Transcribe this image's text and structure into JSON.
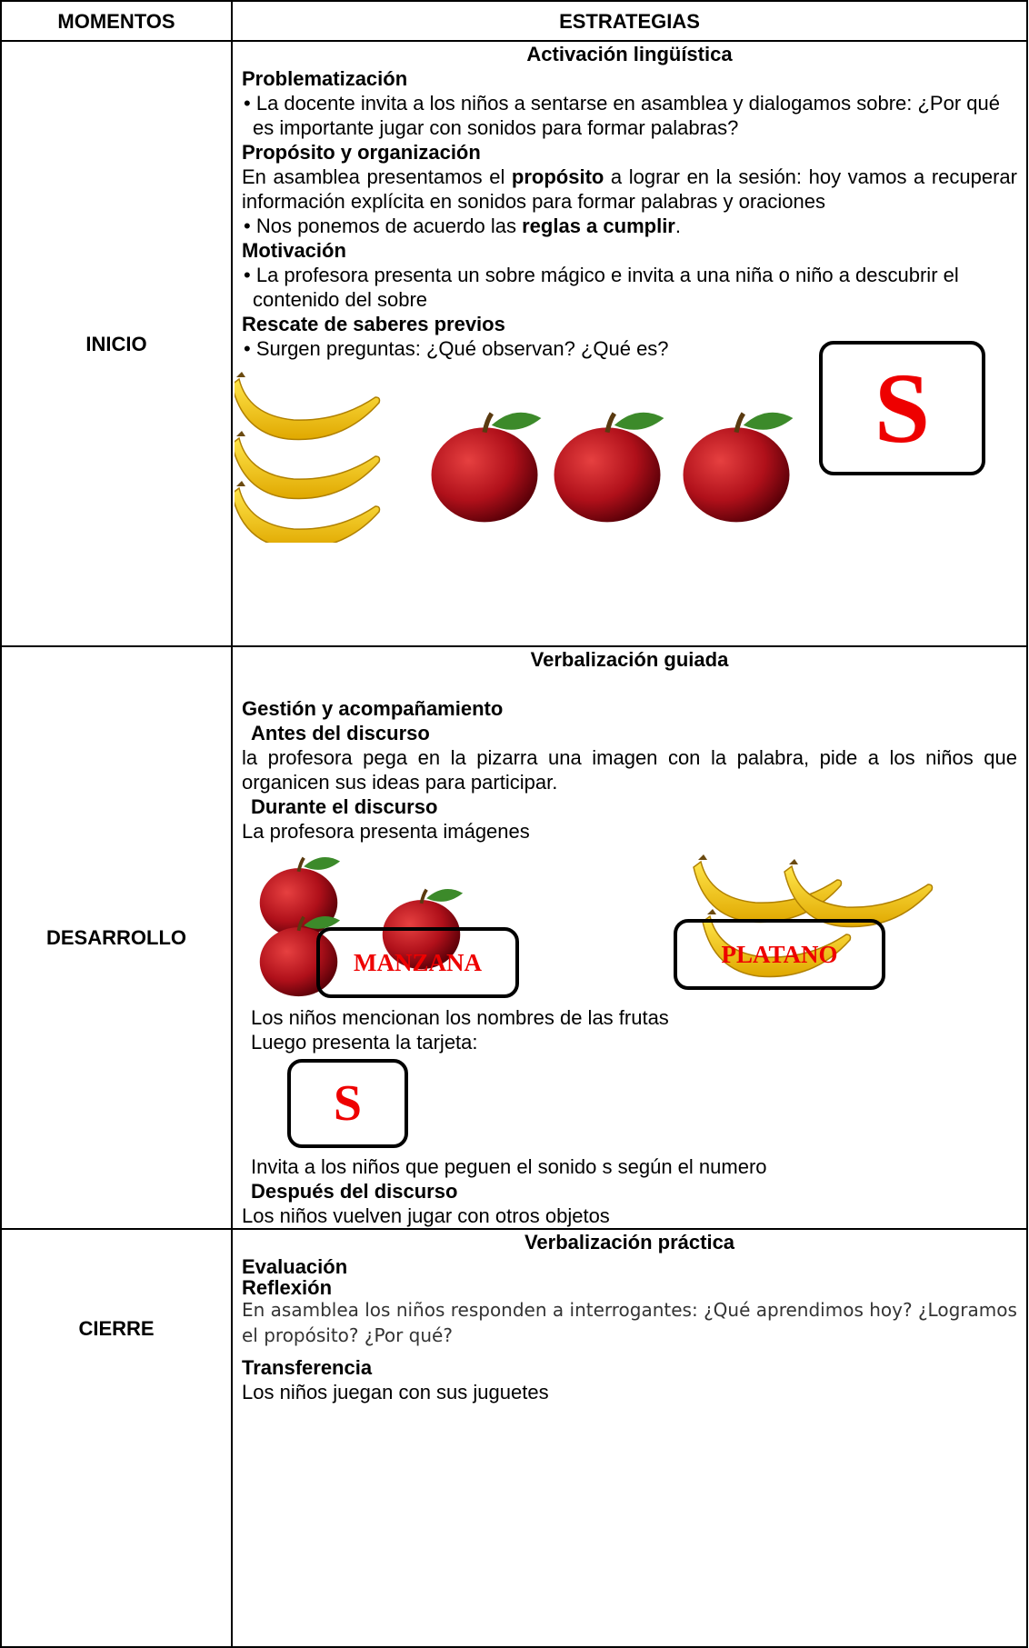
{
  "header": {
    "moments": "MOMENTOS",
    "strategies": "ESTRATEGIAS"
  },
  "inicio": {
    "moment": "INICIO",
    "heading": "Activación lingüística",
    "problem_title": "Problematización",
    "problem_text": "La docente invita a los niños a sentarse en asamblea y dialogamos sobre: ¿Por qué es importante jugar con sonidos para formar palabras?",
    "purpose_title": "Propósito y organización",
    "purpose_text": [
      "En asamblea presentamos el ",
      "propósito",
      " a lograr en la sesión: hoy vamos a recuperar información explícita en sonidos para formar palabras y oraciones"
    ],
    "rules_text": [
      "Nos ponemos de acuerdo las ",
      "reglas a cumplir",
      "."
    ],
    "motivation_title": "Motivación",
    "motivation_text": "La profesora presenta un sobre mágico e invita a una niña o niño a descubrir el contenido del sobre",
    "rescue_title": "Rescate de saberes previos",
    "rescue_text": "Surgen preguntas: ¿Qué observan? ¿Qué es?",
    "card": "S"
  },
  "desarrollo": {
    "moment": "DESARROLLO",
    "heading": "Verbalización guiada",
    "management_title": "Gestión y acompañamiento",
    "before_title": "Antes del discurso",
    "before_text": "la profesora pega en la pizarra una imagen con la palabra, pide a los niños que organicen sus ideas para participar.",
    "during_title": "Durante el discurso",
    "during_text": "La profesora presenta imágenes",
    "card_apple": "MANZANA",
    "card_banana": "PLATANO",
    "mention_text": "Los niños mencionan los nombres de las frutas",
    "card_intro": "Luego presenta la tarjeta:",
    "card": "S",
    "invite_text": "Invita a los niños que peguen el sonido s según el numero",
    "after_title": "Después del discurso",
    "after_text": "Los niños vuelven jugar con otros objetos"
  },
  "cierre": {
    "moment": "CIERRE",
    "heading": "Verbalización práctica",
    "evaluation_title": "Evaluación",
    "reflection_title": "Reflexión",
    "reflection_text": "En asamblea los niños responden a interrogantes: ¿Qué aprendimos hoy? ¿Logramos el propósito? ¿Por qué?",
    "transfer_title": "Transferencia",
    "transfer_text": "Los niños juegan con sus juguetes"
  }
}
